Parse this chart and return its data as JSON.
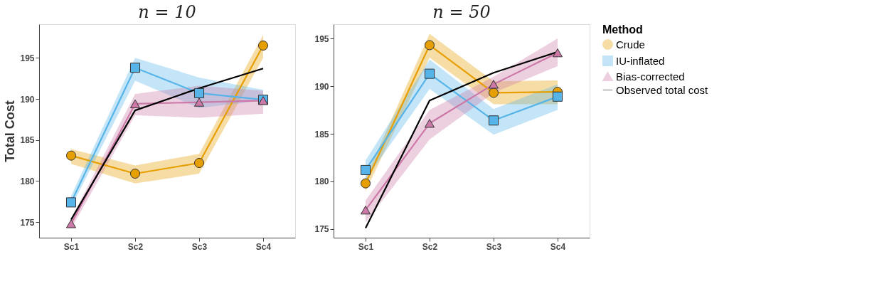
{
  "chart_data": [
    {
      "type": "line",
      "title": "n = 10",
      "ylabel": "Total Cost",
      "categories": [
        "Sc1",
        "Sc2",
        "Sc3",
        "Sc4"
      ],
      "ylim": [
        173.1,
        199.1
      ],
      "yticks": [
        175,
        180,
        185,
        190,
        195
      ],
      "grid": false,
      "series": [
        {
          "color": "#E69F00",
          "marker": "circle",
          "values": [
            183.1,
            180.9,
            182.2,
            196.5
          ],
          "lower": [
            182.1,
            179.7,
            180.9,
            195.0
          ],
          "upper": [
            183.9,
            181.9,
            183.3,
            197.8
          ]
        },
        {
          "color": "#56B4E9",
          "marker": "square",
          "values": [
            177.4,
            193.8,
            190.7,
            189.9
          ],
          "lower": [
            176.8,
            192.2,
            188.9,
            189.8
          ],
          "upper": [
            178.2,
            195.0,
            192.6,
            191.1
          ]
        },
        {
          "color": "#CC79A7",
          "marker": "triangle",
          "values": [
            174.8,
            189.4,
            189.6,
            189.8
          ],
          "lower": [
            174.2,
            188.0,
            187.7,
            188.2
          ],
          "upper": [
            175.4,
            190.6,
            191.6,
            191.0
          ]
        },
        {
          "color": "#000000",
          "marker": "none",
          "values": [
            175.3,
            188.6,
            191.3,
            193.7
          ]
        }
      ]
    },
    {
      "type": "line",
      "title": "n = 50",
      "categories": [
        "Sc1",
        "Sc2",
        "Sc3",
        "Sc4"
      ],
      "ylim": [
        174.1,
        196.5
      ],
      "yticks": [
        175,
        180,
        185,
        190,
        195
      ],
      "grid": false,
      "legend": "right",
      "legend_title": "Method",
      "series": [
        {
          "name": "Crude",
          "color": "#E69F00",
          "marker": "circle",
          "values": [
            179.8,
            194.3,
            189.3,
            189.4
          ],
          "lower": [
            179.0,
            193.0,
            188.1,
            188.1
          ],
          "upper": [
            180.4,
            195.5,
            190.5,
            190.6
          ]
        },
        {
          "name": "IU-inflated",
          "color": "#56B4E9",
          "marker": "square",
          "values": [
            181.2,
            191.3,
            186.4,
            188.9
          ],
          "lower": [
            180.2,
            189.7,
            184.9,
            187.5
          ],
          "upper": [
            182.2,
            192.8,
            187.6,
            190.2
          ]
        },
        {
          "name": "Bias-corrected",
          "color": "#CC79A7",
          "marker": "triangle",
          "values": [
            177.0,
            186.1,
            190.2,
            193.5
          ],
          "lower": [
            175.7,
            184.4,
            189.3,
            192.1
          ],
          "upper": [
            178.0,
            187.5,
            191.0,
            195.0
          ]
        },
        {
          "name": "Observed total cost",
          "color": "#000000",
          "marker": "none",
          "values": [
            175.1,
            188.5,
            191.4,
            193.6
          ]
        }
      ]
    }
  ]
}
